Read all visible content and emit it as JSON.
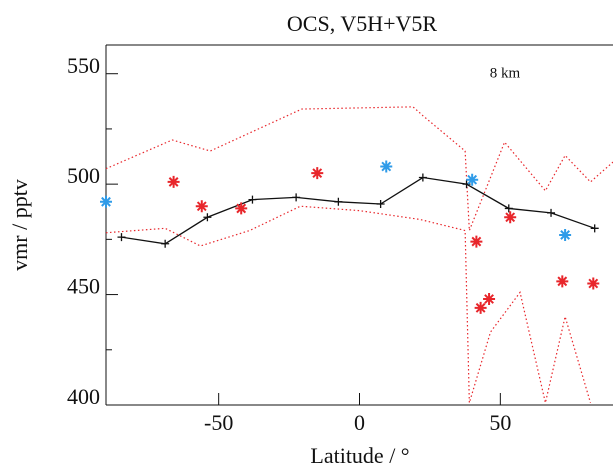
{
  "chart_data": {
    "type": "scatter-line",
    "title": "OCS, V5H+V5R",
    "annotation": "8 km",
    "xlabel": "Latitude / °",
    "ylabel": "vmr / pptv",
    "xlim": [
      -90,
      90
    ],
    "ylim": [
      400,
      563
    ],
    "xticks": [
      -50,
      0,
      50
    ],
    "yticks": [
      400,
      450,
      500,
      550
    ],
    "yminorticks": [
      425,
      475,
      525
    ],
    "series": [
      {
        "style": "dotted",
        "color": "#e8262b",
        "x": [
          -90,
          -66.5,
          -53,
          -20.5,
          19,
          22.5,
          37.5,
          39,
          51.5,
          66,
          73,
          82,
          90
        ],
        "values": [
          507,
          520,
          515,
          534,
          535,
          531,
          515,
          479,
          519,
          497,
          513,
          501,
          510
        ]
      },
      {
        "style": "dotted",
        "color": "#e8262b",
        "x": [
          -90,
          -69,
          -56.5,
          -39,
          -21,
          0,
          21.5,
          37.5,
          39,
          46.5,
          57,
          66,
          73,
          82
        ],
        "values": [
          478,
          480,
          472,
          479,
          490,
          488,
          484,
          479,
          401,
          433,
          451,
          401,
          440,
          401
        ]
      },
      {
        "style": "line-plus",
        "color": "#111111",
        "x": [
          -84.5,
          -69,
          -54,
          -38,
          -22.5,
          -7.5,
          7.5,
          22.5,
          38,
          53,
          68,
          83.5
        ],
        "values": [
          476,
          473,
          485,
          493,
          494,
          492,
          491,
          503,
          500,
          489,
          487,
          480
        ]
      },
      {
        "style": "star",
        "color": "#e8262b",
        "x": [
          -66,
          -56,
          -42,
          -15,
          41.5,
          53.5,
          43,
          46,
          72,
          83
        ],
        "values": [
          501,
          490,
          489,
          505,
          474,
          485,
          444,
          448,
          456,
          455
        ]
      },
      {
        "style": "star",
        "color": "#2f9be8",
        "x": [
          -90,
          9.5,
          40,
          73
        ],
        "values": [
          492,
          508,
          502,
          477
        ]
      }
    ]
  }
}
